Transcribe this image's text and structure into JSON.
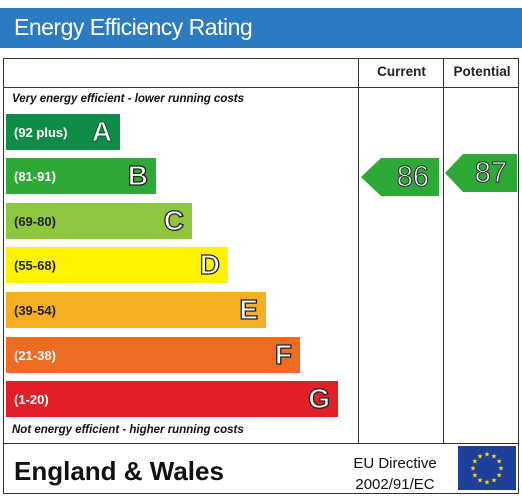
{
  "header": {
    "title": "Energy Efficiency Rating"
  },
  "columns": {
    "current": "Current",
    "potential": "Potential"
  },
  "notes": {
    "top": "Very energy efficient - lower running costs",
    "bottom": "Not energy efficient - higher running costs"
  },
  "bands": [
    {
      "range": "(92 plus)",
      "letter": "A",
      "color": "#0f8c47"
    },
    {
      "range": "(81-91)",
      "letter": "B",
      "color": "#2ea836"
    },
    {
      "range": "(69-80)",
      "letter": "C",
      "color": "#8fc63f"
    },
    {
      "range": "(55-68)",
      "letter": "D",
      "color": "#fff200"
    },
    {
      "range": "(39-54)",
      "letter": "E",
      "color": "#f6ae23"
    },
    {
      "range": "(21-38)",
      "letter": "F",
      "color": "#ee6c22"
    },
    {
      "range": "(1-20)",
      "letter": "G",
      "color": "#e21f27"
    }
  ],
  "ratings": {
    "current": {
      "value": "86",
      "color": "#2ea836"
    },
    "potential": {
      "value": "87",
      "color": "#2ea836"
    }
  },
  "footer": {
    "title": "England & Wales",
    "directive_line1": "EU Directive",
    "directive_line2": "2002/91/EC",
    "flag_color": "#1e3f9a",
    "star_color": "#ffdd00"
  }
}
